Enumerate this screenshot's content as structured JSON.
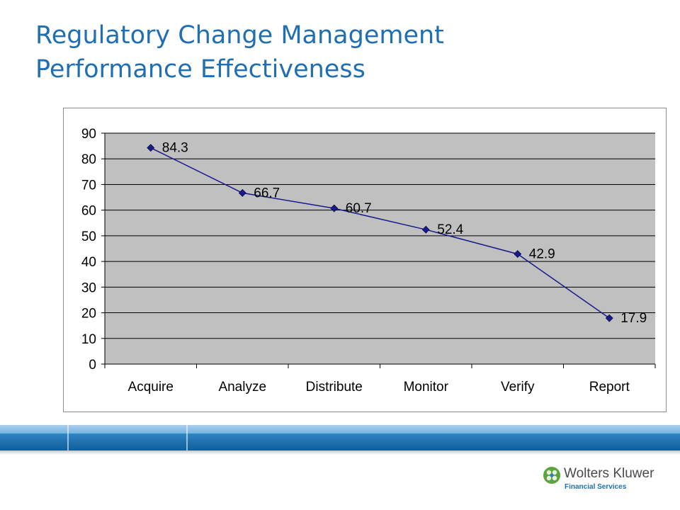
{
  "slide": {
    "title_line1": "Regulatory Change Management",
    "title_line2": "Performance Effectiveness"
  },
  "chart_data": {
    "type": "line",
    "categories": [
      "Acquire",
      "Analyze",
      "Distribute",
      "Monitor",
      "Verify",
      "Report"
    ],
    "values": [
      84.3,
      66.7,
      60.7,
      52.4,
      42.9,
      17.9
    ],
    "data_labels": [
      "84.3",
      "66.7",
      "60.7",
      "52.4",
      "42.9",
      "17.9"
    ],
    "ylim": [
      0,
      90
    ],
    "yticks": [
      0,
      10,
      20,
      30,
      40,
      50,
      60,
      70,
      80,
      90
    ],
    "grid": true,
    "legend": "none",
    "marker": "diamond",
    "colors": {
      "line": "#1a1a8c",
      "plot_background": "#c0c0c0",
      "gridline": "#000000"
    }
  },
  "logo": {
    "name": "Wolters Kluwer",
    "subtitle": "Financial Services",
    "colors": {
      "name": "#4a4a4a",
      "subtitle": "#1f6fb2",
      "mark": "#5aa63c"
    }
  },
  "theme": {
    "title_color": "#1f6fb2",
    "band_color": "#1a6fae"
  }
}
